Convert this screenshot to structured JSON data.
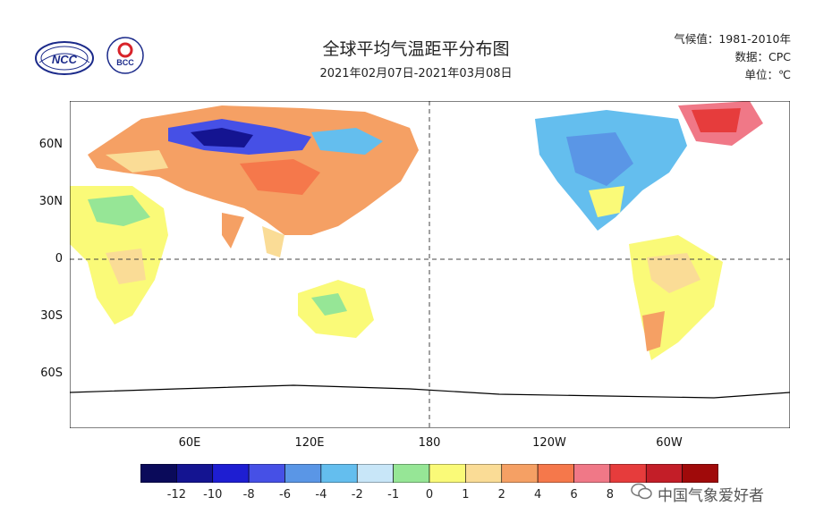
{
  "header": {
    "title": "全球平均气温距平分布图",
    "subtitle": "2021年02月07日-2021年03月08日",
    "meta_lines": [
      "气候值：1981-2010年",
      "数据：CPC",
      "单位：℃"
    ]
  },
  "logos": {
    "left": "NCC",
    "right": "BCC"
  },
  "axes": {
    "y_labels": [
      "60N",
      "30N",
      "0",
      "30S",
      "60S"
    ],
    "x_labels": [
      "60E",
      "120E",
      "180",
      "120W",
      "60W"
    ]
  },
  "colorbar": {
    "labels": [
      "-12",
      "-10",
      "-8",
      "-6",
      "-4",
      "-2",
      "-1",
      "0",
      "1",
      "2",
      "4",
      "6",
      "8"
    ],
    "colors": [
      "#0a0a5a",
      "#141491",
      "#1e1ed2",
      "#4650e6",
      "#5a96e6",
      "#64beee",
      "#c8e6f8",
      "#96e696",
      "#fafa78",
      "#fadc96",
      "#f5a064",
      "#f5784b",
      "#f07887",
      "#e63c3c",
      "#c31e28",
      "#a00a0a"
    ]
  },
  "watermark": {
    "icon": "wechat-icon",
    "text": "中国气象爱好者"
  }
}
